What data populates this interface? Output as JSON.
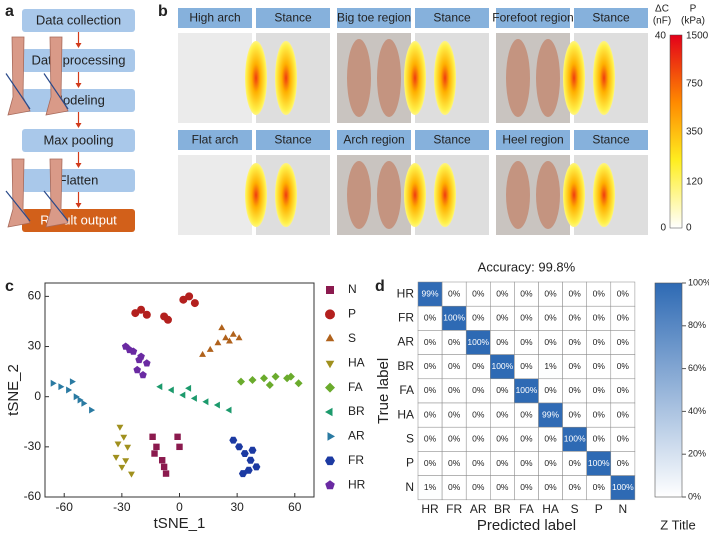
{
  "flowchart": {
    "label": "a",
    "steps": [
      "Data collection",
      "Data processing",
      "Modeling",
      "Max pooling",
      "Flatten",
      "Result output"
    ]
  },
  "panel_b": {
    "label": "b",
    "tiles": [
      {
        "name": "High arch",
        "view": "Stance"
      },
      {
        "name": "Big toe region",
        "view": "Stance"
      },
      {
        "name": "Forefoot region",
        "view": "Stance"
      },
      {
        "name": "Flat arch",
        "view": "Stance"
      },
      {
        "name": "Arch region",
        "view": "Stance"
      },
      {
        "name": "Heel region",
        "view": "Stance"
      }
    ],
    "colorbar": {
      "left_title": "ΔC",
      "left_unit": "(nF)",
      "right_title": "P",
      "right_unit": "(kPa)",
      "left_ticks": [
        "40",
        "0"
      ],
      "right_ticks": [
        "1500",
        "750",
        "350",
        "120",
        "0"
      ]
    }
  },
  "chart_data": [
    {
      "type": "scatter",
      "label": "c",
      "xlabel": "tSNE_1",
      "ylabel": "tSNE_2",
      "xlim": [
        -70,
        70
      ],
      "ylim": [
        -60,
        68
      ],
      "xticks": [
        -60,
        -30,
        0,
        30,
        60
      ],
      "yticks": [
        -60,
        -30,
        0,
        30,
        60
      ],
      "series": [
        {
          "name": "N",
          "color": "#8b1a4e",
          "marker": "square",
          "x": [
            -14,
            -12,
            -9,
            -7,
            -1,
            0,
            -13,
            -8
          ],
          "y": [
            -24,
            -30,
            -38,
            -46,
            -24,
            -30,
            -34,
            -42
          ]
        },
        {
          "name": "P",
          "color": "#b3201e",
          "marker": "circle",
          "x": [
            -23,
            -20,
            -17,
            -8,
            -6,
            2,
            5,
            8
          ],
          "y": [
            50,
            52,
            49,
            48,
            46,
            58,
            60,
            56
          ]
        },
        {
          "name": "S",
          "color": "#b0621c",
          "marker": "triangle-up",
          "x": [
            12,
            16,
            20,
            24,
            28,
            31,
            22,
            26
          ],
          "y": [
            25,
            28,
            32,
            35,
            37,
            35,
            41,
            33
          ]
        },
        {
          "name": "HA",
          "color": "#a0901e",
          "marker": "triangle-down",
          "x": [
            -31,
            -29,
            -27,
            -33,
            -30,
            -25,
            -28,
            -32
          ],
          "y": [
            -18,
            -24,
            -30,
            -36,
            -42,
            -46,
            -38,
            -28
          ]
        },
        {
          "name": "FA",
          "color": "#6aab2c",
          "marker": "diamond",
          "x": [
            32,
            38,
            44,
            50,
            56,
            62,
            47,
            58
          ],
          "y": [
            9,
            10,
            11,
            12,
            11,
            8,
            7,
            12
          ]
        },
        {
          "name": "BR",
          "color": "#1c9a6c",
          "marker": "triangle-left",
          "x": [
            -10,
            -4,
            2,
            8,
            14,
            20,
            26,
            5
          ],
          "y": [
            6,
            4,
            1,
            -1,
            -3,
            -5,
            -8,
            5
          ]
        },
        {
          "name": "AR",
          "color": "#2a7aa2",
          "marker": "triangle-right",
          "x": [
            -66,
            -62,
            -58,
            -54,
            -50,
            -46,
            -56,
            -52
          ],
          "y": [
            8,
            6,
            4,
            0,
            -4,
            -8,
            9,
            -2
          ]
        },
        {
          "name": "FR",
          "color": "#1c3aa2",
          "marker": "hexagon",
          "x": [
            28,
            31,
            34,
            37,
            40,
            33,
            38,
            36
          ],
          "y": [
            -26,
            -30,
            -34,
            -38,
            -42,
            -46,
            -32,
            -44
          ]
        },
        {
          "name": "HR",
          "color": "#6a2aa2",
          "marker": "pentagon",
          "x": [
            -28,
            -24,
            -20,
            -17,
            -22,
            -19,
            -26,
            -21
          ],
          "y": [
            30,
            27,
            24,
            20,
            16,
            13,
            28,
            22
          ]
        }
      ]
    },
    {
      "type": "heatmap",
      "label": "d",
      "title": "Accuracy: 99.8%",
      "xlabel": "Predicted label",
      "ylabel": "True label",
      "x_categories": [
        "HR",
        "FR",
        "AR",
        "BR",
        "FA",
        "HA",
        "S",
        "P",
        "N"
      ],
      "y_categories": [
        "HR",
        "FR",
        "AR",
        "BR",
        "FA",
        "HA",
        "S",
        "P",
        "N"
      ],
      "values": [
        [
          99,
          0,
          0,
          0,
          0,
          0,
          0,
          0,
          0
        ],
        [
          0,
          100,
          0,
          0,
          0,
          0,
          0,
          0,
          0
        ],
        [
          0,
          0,
          100,
          0,
          0,
          0,
          0,
          0,
          0
        ],
        [
          0,
          0,
          0,
          100,
          0,
          1,
          0,
          0,
          0
        ],
        [
          0,
          0,
          0,
          0,
          100,
          0,
          0,
          0,
          0
        ],
        [
          0,
          0,
          0,
          0,
          0,
          99,
          0,
          0,
          0
        ],
        [
          0,
          0,
          0,
          0,
          0,
          0,
          100,
          0,
          0
        ],
        [
          0,
          0,
          0,
          0,
          0,
          0,
          0,
          100,
          0
        ],
        [
          1,
          0,
          0,
          0,
          0,
          0,
          0,
          0,
          100
        ]
      ],
      "value_labels": [
        [
          "99%",
          "0%",
          "0%",
          "0%",
          "0%",
          "0%",
          "0%",
          "0%",
          "0%"
        ],
        [
          "0%",
          "100%",
          "0%",
          "0%",
          "0%",
          "0%",
          "0%",
          "0%",
          "0%"
        ],
        [
          "0%",
          "0%",
          "100%",
          "0%",
          "0%",
          "0%",
          "0%",
          "0%",
          "0%"
        ],
        [
          "0%",
          "0%",
          "0%",
          "100%",
          "0%",
          "1%",
          "0%",
          "0%",
          "0%"
        ],
        [
          "0%",
          "0%",
          "0%",
          "0%",
          "100%",
          "0%",
          "0%",
          "0%",
          "0%"
        ],
        [
          "0%",
          "0%",
          "0%",
          "0%",
          "0%",
          "99%",
          "0%",
          "0%",
          "0%"
        ],
        [
          "0%",
          "0%",
          "0%",
          "0%",
          "0%",
          "0%",
          "100%",
          "0%",
          "0%"
        ],
        [
          "0%",
          "0%",
          "0%",
          "0%",
          "0%",
          "0%",
          "0%",
          "100%",
          "0%"
        ],
        [
          "1%",
          "0%",
          "0%",
          "0%",
          "0%",
          "0%",
          "0%",
          "0%",
          "100%"
        ]
      ],
      "colorbar_title": "Z Title",
      "zlim": [
        0,
        100
      ],
      "zticks": [
        {
          "value": 0,
          "label": "0%"
        },
        {
          "value": 20,
          "label": "20%"
        },
        {
          "value": 40,
          "label": "40%"
        },
        {
          "value": 60,
          "label": "60%"
        },
        {
          "value": 80,
          "label": "80%"
        },
        {
          "value": 100,
          "label": "100%"
        }
      ],
      "colors": [
        "#ffffff",
        "#2e6ab4"
      ]
    }
  ]
}
